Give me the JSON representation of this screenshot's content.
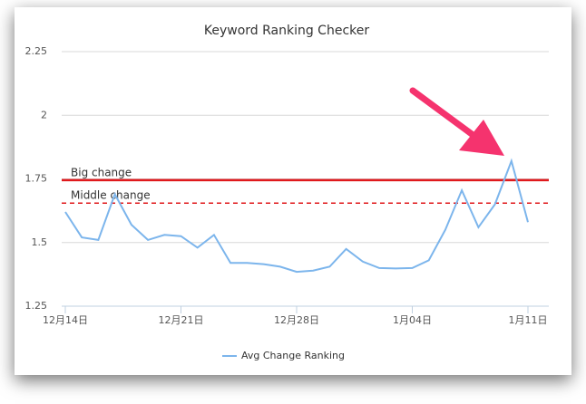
{
  "chart_data": {
    "type": "line",
    "title": "Keyword Ranking Checker",
    "categories": [
      "12月14日",
      null,
      null,
      null,
      null,
      null,
      null,
      "12月21日",
      null,
      null,
      null,
      null,
      null,
      null,
      "12月28日",
      null,
      null,
      null,
      null,
      null,
      null,
      "1月04日",
      null,
      null,
      null,
      null,
      null,
      null,
      "1月11日"
    ],
    "series": [
      {
        "name": "Avg Change Ranking",
        "color": "#7cb5ec",
        "values": [
          1.62,
          1.52,
          1.51,
          1.69,
          1.57,
          1.51,
          1.53,
          1.525,
          1.48,
          1.53,
          1.42,
          1.42,
          1.415,
          1.405,
          1.385,
          1.39,
          1.405,
          1.475,
          1.425,
          1.4,
          1.398,
          1.4,
          1.43,
          1.55,
          1.705,
          1.56,
          1.65,
          1.82,
          1.58
        ]
      }
    ],
    "ylim": [
      1.25,
      2.25
    ],
    "yticks": [
      1.25,
      1.5,
      1.75,
      2,
      2.25
    ],
    "grid": true,
    "plot_lines": [
      {
        "label": "Big change",
        "value": 1.745,
        "color": "#e0191c",
        "dash": false
      },
      {
        "label": "Middle change",
        "value": 1.655,
        "color": "#e0191c",
        "dash": true
      }
    ]
  }
}
